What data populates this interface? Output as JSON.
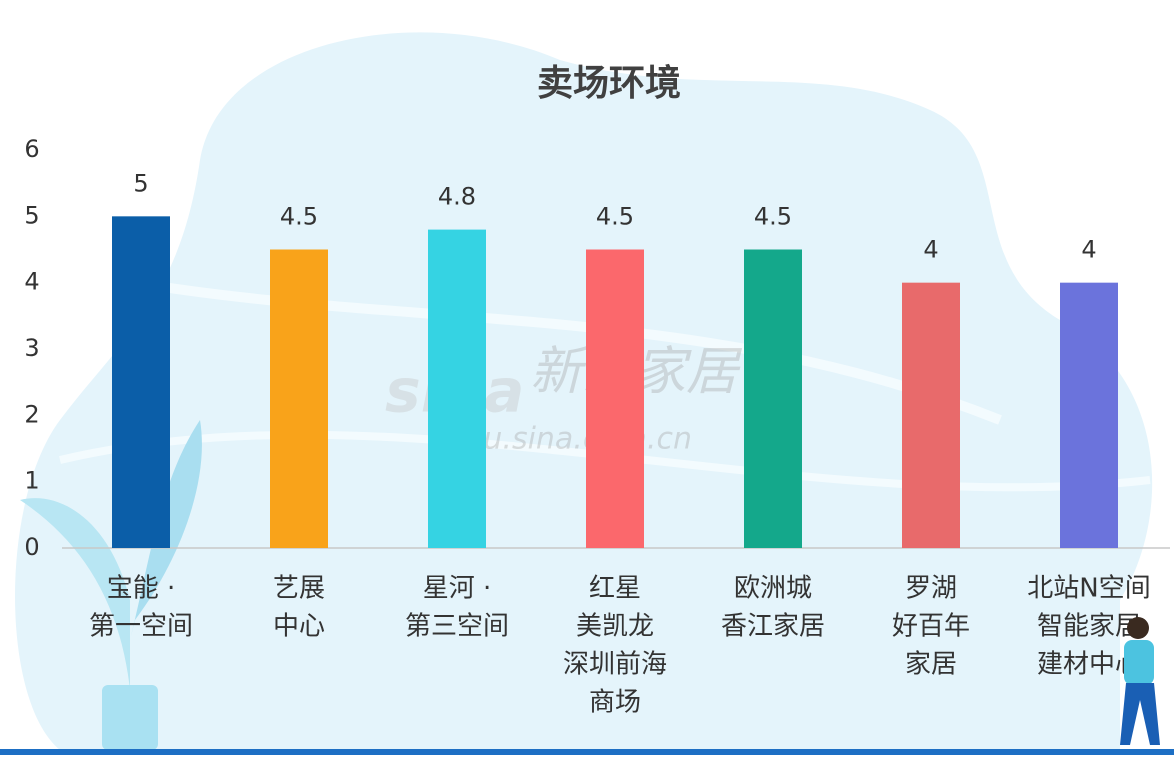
{
  "chart_data": {
    "type": "bar",
    "title": "卖场环境",
    "categories": [
      [
        "宝能 ·",
        "第一空间"
      ],
      [
        "艺展",
        "中心"
      ],
      [
        "星河 ·",
        "第三空间"
      ],
      [
        "红星",
        "美凯龙",
        "深圳前海",
        "商场"
      ],
      [
        "欧洲城",
        "香江家居"
      ],
      [
        "罗湖",
        "好百年",
        "家居"
      ],
      [
        "北站N空间",
        "智能家居",
        "建材中心"
      ]
    ],
    "values": [
      5,
      4.5,
      4.8,
      4.5,
      4.5,
      4,
      4
    ],
    "colors": [
      "#0b5ea8",
      "#f9a31a",
      "#35d3e3",
      "#fb686c",
      "#14a88b",
      "#e86a6b",
      "#6b73dc"
    ],
    "ylim": [
      0,
      6
    ],
    "yticks": [
      0,
      1,
      2,
      3,
      4,
      5,
      6
    ],
    "grid": false
  },
  "watermark": {
    "logo": "sina",
    "name": "新浪家居",
    "url": "jiaju.sina.com.cn"
  }
}
